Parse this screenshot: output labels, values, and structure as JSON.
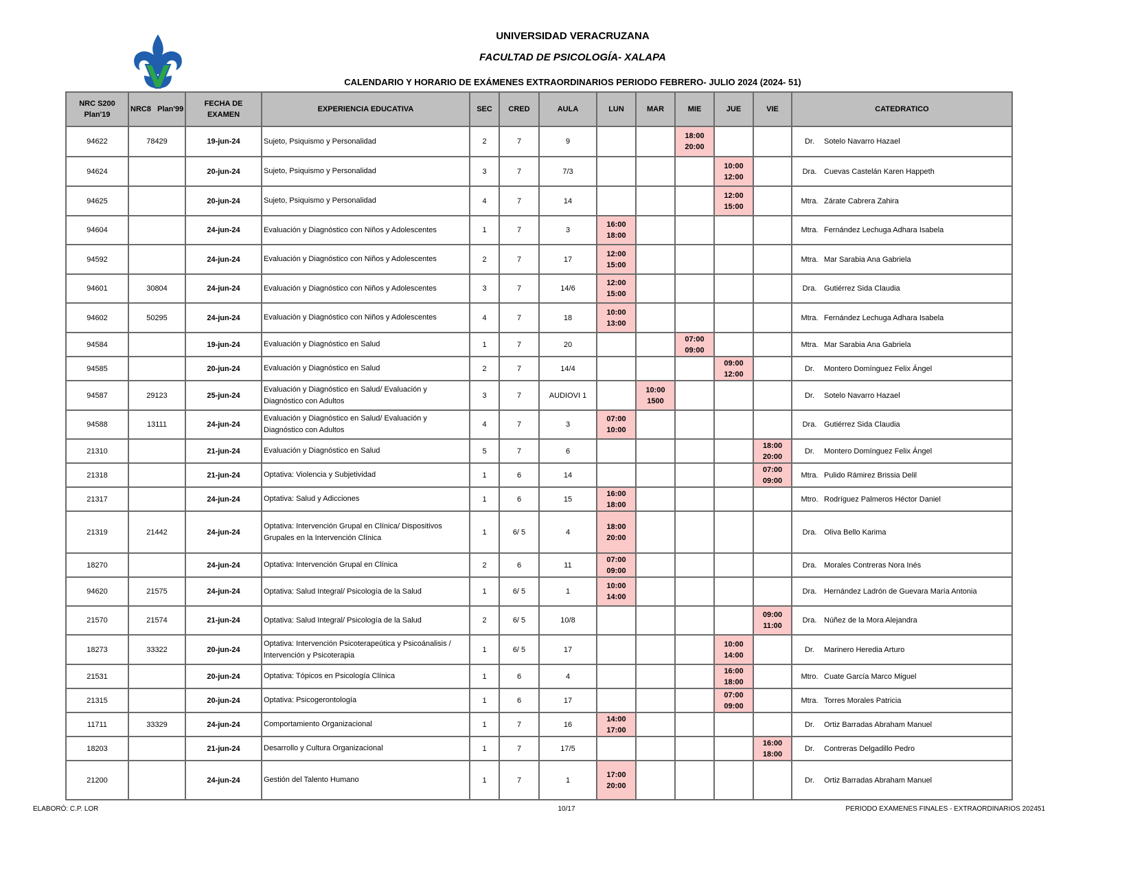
{
  "header": {
    "university": "UNIVERSIDAD VERACRUZANA",
    "faculty": "FACULTAD DE PSICOLOGÍA- XALAPA",
    "subtitle": "CALENDARIO Y HORARIO DE EXÁMENES EXTRAORDINARIOS PERIODO FEBRERO- JULIO 2024 (2024- 51)",
    "logo_colors": {
      "blue": "#1f5fad",
      "green": "#2aa54a"
    }
  },
  "columns": [
    "NRC S200 Plan'19",
    "NRC8   Plan'99",
    "FECHA DE EXAMEN",
    "EXPERIENCIA EDUCATIVA",
    "SEC",
    "CRED",
    "AULA",
    "LUN",
    "MAR",
    "MIE",
    "JUE",
    "VIE",
    "CATEDRATICO"
  ],
  "time_highlight_color": "#fcc9c9",
  "rows": [
    {
      "nrc19": "94622",
      "nrc99": "78429",
      "fecha": "19-jun-24",
      "ee": "Sujeto, Psiquismo y Personalidad",
      "sec": "2",
      "cred": "7",
      "aula": "9",
      "day": "MIE",
      "start": "18:00",
      "end": "20:00",
      "titulo": "Dr.",
      "nombre": "Sotelo Navarro Hazael"
    },
    {
      "nrc19": "94624",
      "nrc99": "",
      "fecha": "20-jun-24",
      "ee": "Sujeto, Psiquismo y Personalidad",
      "sec": "3",
      "cred": "7",
      "aula": "7/3",
      "day": "JUE",
      "start": "10:00",
      "end": "12:00",
      "titulo": "Dra.",
      "nombre": "Cuevas Castelán Karen Happeth"
    },
    {
      "nrc19": "94625",
      "nrc99": "",
      "fecha": "20-jun-24",
      "ee": "Sujeto, Psiquismo y Personalidad",
      "sec": "4",
      "cred": "7",
      "aula": "14",
      "day": "JUE",
      "start": "12:00",
      "end": "15:00",
      "titulo": "Mtra.",
      "nombre": "Zárate Cabrera Zahira"
    },
    {
      "nrc19": "94604",
      "nrc99": "",
      "fecha": "24-jun-24",
      "ee": "Evaluación y Diagnóstico con Niños y Adolescentes",
      "sec": "1",
      "cred": "7",
      "aula": "3",
      "day": "LUN",
      "start": "16:00",
      "end": "18:00",
      "titulo": "Mtra.",
      "nombre": "Fernández Lechuga Adhara Isabela"
    },
    {
      "nrc19": "94592",
      "nrc99": "",
      "fecha": "24-jun-24",
      "ee": "Evaluación y Diagnóstico con Niños y Adolescentes",
      "sec": "2",
      "cred": "7",
      "aula": "17",
      "day": "LUN",
      "start": "12:00",
      "end": "15:00",
      "titulo": "Mtra.",
      "nombre": "Mar Sarabia Ana Gabriela"
    },
    {
      "nrc19": "94601",
      "nrc99": "30804",
      "fecha": "24-jun-24",
      "ee": "Evaluación y Diagnóstico con Niños y Adolescentes",
      "sec": "3",
      "cred": "7",
      "aula": "14/6",
      "day": "LUN",
      "start": "12:00",
      "end": "15:00",
      "titulo": "Dra.",
      "nombre": "Gutiérrez Sida Claudia"
    },
    {
      "nrc19": "94602",
      "nrc99": "50295",
      "fecha": "24-jun-24",
      "ee": "Evaluación y Diagnóstico con Niños y Adolescentes",
      "sec": "4",
      "cred": "7",
      "aula": "18",
      "day": "LUN",
      "start": "10:00",
      "end": "13:00",
      "titulo": "Mtra.",
      "nombre": "Fernández Lechuga Adhara Isabela"
    },
    {
      "nrc19": "94584",
      "nrc99": "",
      "fecha": "19-jun-24",
      "ee": "Evaluación y Diagnóstico en Salud",
      "sec": "1",
      "cred": "7",
      "aula": "20",
      "day": "MIE",
      "start": "07:00",
      "end": "09:00",
      "titulo": "Mtra.",
      "nombre": "Mar Sarabia Ana Gabriela"
    },
    {
      "nrc19": "94585",
      "nrc99": "",
      "fecha": "20-jun-24",
      "ee": "Evaluación y Diagnóstico en Salud",
      "sec": "2",
      "cred": "7",
      "aula": "14/4",
      "day": "JUE",
      "start": "09:00",
      "end": "12:00",
      "titulo": "Dr.",
      "nombre": "Montero Domínguez Felix Ángel"
    },
    {
      "nrc19": "94587",
      "nrc99": "29123",
      "fecha": "25-jun-24",
      "ee": "Evaluación y Diagnóstico en Salud/ Evaluación y Diagnóstico con Adultos",
      "sec": "3",
      "cred": "7",
      "aula": "AUDIOVI 1",
      "day": "MAR",
      "start": "10:00",
      "end": "1500",
      "titulo": "Dr.",
      "nombre": "Sotelo Navarro Hazael"
    },
    {
      "nrc19": "94588",
      "nrc99": "13111",
      "fecha": "24-jun-24",
      "ee": "Evaluación y Diagnóstico en Salud/ Evaluación y Diagnóstico con Adultos",
      "sec": "4",
      "cred": "7",
      "aula": "3",
      "day": "LUN",
      "start": "07:00",
      "end": "10:00",
      "titulo": "Dra.",
      "nombre": "Gutiérrez Sida Claudia"
    },
    {
      "nrc19": "21310",
      "nrc99": "",
      "fecha": "21-jun-24",
      "ee": "Evaluación y Diagnóstico en Salud",
      "sec": "5",
      "cred": "7",
      "aula": "6",
      "day": "VIE",
      "start": "18:00",
      "end": "20:00",
      "titulo": "Dr.",
      "nombre": "Montero Domínguez Felix Ángel"
    },
    {
      "nrc19": "21318",
      "nrc99": "",
      "fecha": "21-jun-24",
      "ee": "Optativa: Violencia y Subjetividad",
      "sec": "1",
      "cred": "6",
      "aula": "14",
      "day": "VIE",
      "start": "07:00",
      "end": "09:00",
      "titulo": "Mtra.",
      "nombre": "Pulido Rámirez Brissia Delil"
    },
    {
      "nrc19": "21317",
      "nrc99": "",
      "fecha": "24-jun-24",
      "ee": "Optativa: Salud y Adicciones",
      "sec": "1",
      "cred": "6",
      "aula": "15",
      "day": "LUN",
      "start": "16:00",
      "end": "18:00",
      "titulo": "Mtro.",
      "nombre": "Rodríguez Palmeros Héctor Daniel"
    },
    {
      "nrc19": "21319",
      "nrc99": "21442",
      "fecha": "24-jun-24",
      "ee": "Optativa: Intervención Grupal en Clínica/ Dispositivos Grupales en la Intervención Clínica",
      "sec": "1",
      "cred": "6/ 5",
      "aula": "4",
      "day": "LUN",
      "start": "18:00",
      "end": "20:00",
      "titulo": "Dra.",
      "nombre": "Oliva Bello Karima"
    },
    {
      "nrc19": "18270",
      "nrc99": "",
      "fecha": "24-jun-24",
      "ee": "Optativa: Intervención Grupal en Clínica",
      "sec": "2",
      "cred": "6",
      "aula": "11",
      "day": "LUN",
      "start": "07:00",
      "end": "09:00",
      "titulo": "Dra.",
      "nombre": "Morales Contreras Nora Inés"
    },
    {
      "nrc19": "94620",
      "nrc99": "21575",
      "fecha": "24-jun-24",
      "ee": "Optativa: Salud Integral/ Psicología de la Salud",
      "sec": "1",
      "cred": "6/ 5",
      "aula": "1",
      "day": "LUN",
      "start": "10:00",
      "end": "14:00",
      "titulo": "Dra.",
      "nombre": "Hernández Ladrón de Guevara María Antonia"
    },
    {
      "nrc19": "21570",
      "nrc99": "21574",
      "fecha": "21-jun-24",
      "ee": "Optativa: Salud Integral/ Psicología de la Salud",
      "sec": "2",
      "cred": "6/ 5",
      "aula": "10/8",
      "day": "VIE",
      "start": "09:00",
      "end": "11:00",
      "titulo": "Dra.",
      "nombre": "Núñez de la Mora Alejandra"
    },
    {
      "nrc19": "18273",
      "nrc99": "33322",
      "fecha": "20-jun-24",
      "ee": "Optativa: Intervención Psicoterapeútica y Psicoánalisis / Intervención y Psicoterapia",
      "sec": "1",
      "cred": "6/ 5",
      "aula": "17",
      "day": "JUE",
      "start": "10:00",
      "end": "14:00",
      "titulo": "Dr.",
      "nombre": "Marinero Heredia Arturo"
    },
    {
      "nrc19": "21531",
      "nrc99": "",
      "fecha": "20-jun-24",
      "ee": "Optativa: Tópicos en Psicología Clínica",
      "sec": "1",
      "cred": "6",
      "aula": "4",
      "day": "JUE",
      "start": "16:00",
      "end": "18:00",
      "titulo": "Mtro.",
      "nombre": "Cuate García Marco Miguel"
    },
    {
      "nrc19": "21315",
      "nrc99": "",
      "fecha": "20-jun-24",
      "ee": "Optativa: Psicogerontología",
      "sec": "1",
      "cred": "6",
      "aula": "17",
      "day": "JUE",
      "start": "07:00",
      "end": "09:00",
      "titulo": "Mtra.",
      "nombre": "Torres Morales Patricia"
    },
    {
      "nrc19": "11711",
      "nrc99": "33329",
      "fecha": "24-jun-24",
      "ee": "Comportamiento Organizacional",
      "sec": "1",
      "cred": "7",
      "aula": "16",
      "day": "LUN",
      "start": "14:00",
      "end": "17:00",
      "titulo": "Dr.",
      "nombre": "Ortiz Barradas Abraham Manuel"
    },
    {
      "nrc19": "18203",
      "nrc99": "",
      "fecha": "21-jun-24",
      "ee": "Desarrollo y Cultura Organizacional",
      "sec": "1",
      "cred": "7",
      "aula": "17/5",
      "day": "VIE",
      "start": "16:00",
      "end": "18:00",
      "titulo": "Dr.",
      "nombre": "Contreras Delgadillo Pedro"
    },
    {
      "nrc19": "21200",
      "nrc99": "",
      "fecha": "24-jun-24",
      "ee": "Gestión del Talento Humano",
      "sec": "1",
      "cred": "7",
      "aula": "1",
      "day": "LUN",
      "start": "17:00",
      "end": "20:00",
      "titulo": "Dr.",
      "nombre": "Ortiz Barradas Abraham Manuel"
    }
  ],
  "footer": {
    "left": "ELABORÓ: C.P. LOR",
    "center": "10/17",
    "right": "PERIODO EXAMENES FINALES - EXTRAORDINARIOS 202451"
  }
}
